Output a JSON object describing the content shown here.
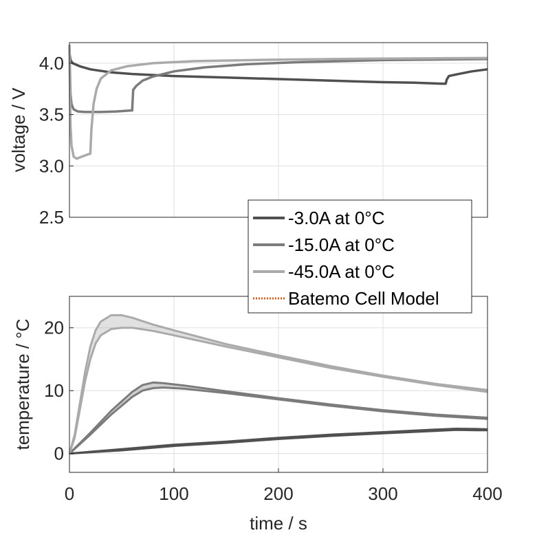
{
  "chart_data": [
    {
      "type": "line",
      "title": "",
      "xlabel": "",
      "ylabel": "voltage / V",
      "xlim": [
        0,
        400
      ],
      "ylim": [
        2.5,
        4.2
      ],
      "xticks": [
        0,
        100,
        200,
        300,
        400
      ],
      "yticks": [
        "2.5",
        "3.0",
        "3.5",
        "4.0"
      ],
      "grid": true,
      "legend": "bottom-right",
      "series": [
        {
          "name": "-3.0A at 0°C",
          "color": "#505050",
          "points": [
            [
              0,
              4.1
            ],
            [
              1,
              4.03
            ],
            [
              3,
              4.0
            ],
            [
              10,
              3.97
            ],
            [
              20,
              3.94
            ],
            [
              40,
              3.91
            ],
            [
              60,
              3.895
            ],
            [
              100,
              3.875
            ],
            [
              150,
              3.86
            ],
            [
              200,
              3.845
            ],
            [
              250,
              3.83
            ],
            [
              300,
              3.815
            ],
            [
              330,
              3.81
            ],
            [
              358,
              3.8
            ],
            [
              360,
              3.8
            ],
            [
              361,
              3.84
            ],
            [
              363,
              3.875
            ],
            [
              370,
              3.89
            ],
            [
              385,
              3.92
            ],
            [
              400,
              3.94
            ]
          ]
        },
        {
          "name": "-15.0A at 0°C",
          "color": "#7b7b7b",
          "points": [
            [
              0,
              4.15
            ],
            [
              1,
              3.7
            ],
            [
              2,
              3.6
            ],
            [
              4,
              3.55
            ],
            [
              8,
              3.53
            ],
            [
              15,
              3.525
            ],
            [
              30,
              3.525
            ],
            [
              45,
              3.53
            ],
            [
              59,
              3.54
            ],
            [
              60,
              3.54
            ],
            [
              61,
              3.74
            ],
            [
              64,
              3.78
            ],
            [
              70,
              3.83
            ],
            [
              80,
              3.87
            ],
            [
              100,
              3.92
            ],
            [
              130,
              3.96
            ],
            [
              170,
              3.99
            ],
            [
              220,
              4.01
            ],
            [
              300,
              4.03
            ],
            [
              400,
              4.04
            ]
          ]
        },
        {
          "name": "-45.0A at 0°C",
          "color": "#aaaaaa",
          "points": [
            [
              0,
              4.18
            ],
            [
              1,
              3.4
            ],
            [
              2,
              3.2
            ],
            [
              4,
              3.09
            ],
            [
              7,
              3.07
            ],
            [
              12,
              3.09
            ],
            [
              17,
              3.11
            ],
            [
              20,
              3.12
            ],
            [
              21,
              3.35
            ],
            [
              23,
              3.6
            ],
            [
              26,
              3.75
            ],
            [
              30,
              3.85
            ],
            [
              40,
              3.93
            ],
            [
              55,
              3.97
            ],
            [
              80,
              4.0
            ],
            [
              120,
              4.02
            ],
            [
              200,
              4.035
            ],
            [
              300,
              4.045
            ],
            [
              400,
              4.05
            ]
          ]
        }
      ]
    },
    {
      "type": "area",
      "title": "",
      "xlabel": "time / s",
      "ylabel": "temperature / °C",
      "xlim": [
        0,
        400
      ],
      "ylim": [
        -3,
        25
      ],
      "xticks": [
        0,
        100,
        200,
        300,
        400
      ],
      "yticks": [
        0,
        10,
        20
      ],
      "grid": true,
      "series": [
        {
          "name": "-3.0A at 0°C",
          "color": "#505050",
          "upper": [
            [
              0,
              0
            ],
            [
              50,
              0.7
            ],
            [
              100,
              1.4
            ],
            [
              150,
              1.9
            ],
            [
              200,
              2.5
            ],
            [
              250,
              3.0
            ],
            [
              300,
              3.4
            ],
            [
              350,
              3.8
            ],
            [
              370,
              3.95
            ],
            [
              390,
              3.9
            ],
            [
              400,
              3.85
            ]
          ],
          "lower": [
            [
              0,
              0
            ],
            [
              50,
              0.5
            ],
            [
              100,
              1.2
            ],
            [
              150,
              1.7
            ],
            [
              200,
              2.3
            ],
            [
              250,
              2.8
            ],
            [
              300,
              3.2
            ],
            [
              350,
              3.6
            ],
            [
              370,
              3.75
            ],
            [
              390,
              3.7
            ],
            [
              400,
              3.7
            ]
          ]
        },
        {
          "name": "-15.0A at 0°C",
          "color": "#7b7b7b",
          "upper": [
            [
              0,
              0
            ],
            [
              20,
              3.3
            ],
            [
              40,
              6.8
            ],
            [
              60,
              9.8
            ],
            [
              70,
              10.9
            ],
            [
              80,
              11.3
            ],
            [
              90,
              11.2
            ],
            [
              110,
              10.8
            ],
            [
              150,
              9.9
            ],
            [
              200,
              8.8
            ],
            [
              250,
              7.8
            ],
            [
              300,
              6.9
            ],
            [
              350,
              6.2
            ],
            [
              400,
              5.7
            ]
          ],
          "lower": [
            [
              0,
              0
            ],
            [
              20,
              3.0
            ],
            [
              40,
              6.2
            ],
            [
              60,
              9.0
            ],
            [
              70,
              10.0
            ],
            [
              80,
              10.4
            ],
            [
              90,
              10.5
            ],
            [
              110,
              10.3
            ],
            [
              150,
              9.6
            ],
            [
              200,
              8.6
            ],
            [
              250,
              7.6
            ],
            [
              300,
              6.7
            ],
            [
              350,
              6.0
            ],
            [
              400,
              5.5
            ]
          ]
        },
        {
          "name": "-45.0A at 0°C",
          "color": "#aaaaaa",
          "upper": [
            [
              0,
              0
            ],
            [
              5,
              3
            ],
            [
              10,
              8
            ],
            [
              15,
              13
            ],
            [
              20,
              17
            ],
            [
              25,
              19.6
            ],
            [
              30,
              21
            ],
            [
              40,
              22
            ],
            [
              50,
              22
            ],
            [
              60,
              21.6
            ],
            [
              80,
              20.5
            ],
            [
              100,
              19.6
            ],
            [
              150,
              17.4
            ],
            [
              200,
              15.6
            ],
            [
              250,
              13.9
            ],
            [
              300,
              12.4
            ],
            [
              350,
              11.1
            ],
            [
              400,
              10.1
            ]
          ],
          "lower": [
            [
              0,
              0
            ],
            [
              5,
              2.5
            ],
            [
              10,
              7
            ],
            [
              15,
              11.5
            ],
            [
              20,
              15
            ],
            [
              25,
              17.5
            ],
            [
              30,
              18.8
            ],
            [
              40,
              19.8
            ],
            [
              50,
              20.0
            ],
            [
              60,
              20.0
            ],
            [
              80,
              19.5
            ],
            [
              100,
              18.8
            ],
            [
              150,
              17.0
            ],
            [
              200,
              15.3
            ],
            [
              250,
              13.6
            ],
            [
              300,
              12.2
            ],
            [
              350,
              10.9
            ],
            [
              400,
              9.8
            ]
          ]
        }
      ]
    }
  ],
  "legend": {
    "entries": [
      {
        "label": "-3.0A at 0°C",
        "color": "#505050",
        "style": "solid"
      },
      {
        "label": "-15.0A at 0°C",
        "color": "#7b7b7b",
        "style": "solid"
      },
      {
        "label": "-45.0A at 0°C",
        "color": "#aaaaaa",
        "style": "solid"
      },
      {
        "label": "Batemo Cell Model",
        "color": "#e05a10",
        "style": "dotted"
      }
    ]
  }
}
